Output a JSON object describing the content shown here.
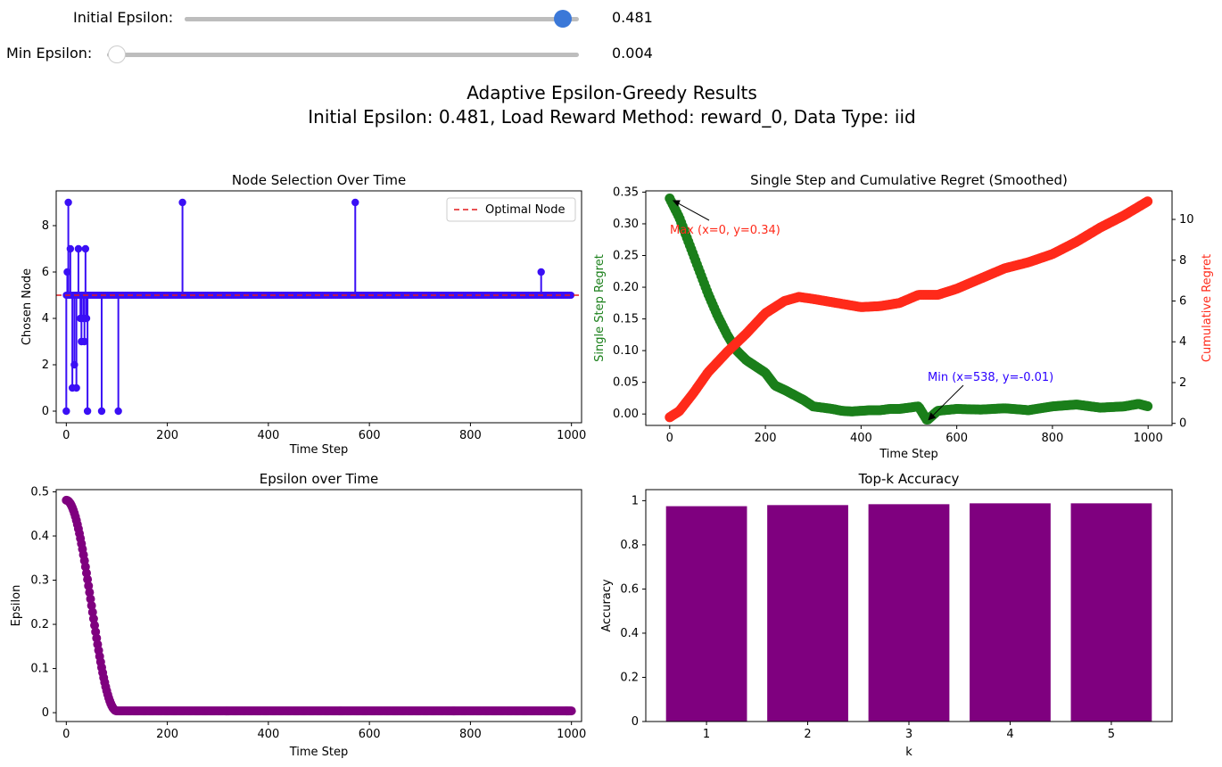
{
  "controls": {
    "initial_epsilon": {
      "label": "Initial Epsilon:",
      "value_text": "0.481",
      "fraction": 0.96
    },
    "min_epsilon": {
      "label": "Min Epsilon:",
      "value_text": "0.004",
      "fraction": 0.02
    }
  },
  "figure": {
    "suptitle_line1": "Adaptive Epsilon-Greedy Results",
    "suptitle_line2": "Initial Epsilon: 0.481, Load Reward Method: reward_0, Data Type: iid"
  },
  "colors": {
    "node_line": "#3a0ff5",
    "optimal_line": "#e41a1c",
    "single_regret": "#1a7f1a",
    "cumulative_regret": "#ff2a1a",
    "purple": "#7f007f",
    "min_annot": "#2a00ff",
    "slider_thumb_active": "#3b78d8"
  },
  "chart_data": [
    {
      "type": "stem",
      "title": "Node Selection Over Time",
      "xlabel": "Time Step",
      "ylabel": "Chosen Node",
      "xlim": [
        -20,
        1020
      ],
      "ylim": [
        -0.5,
        9.5
      ],
      "xticks": [
        0,
        200,
        400,
        600,
        800,
        1000
      ],
      "yticks": [
        0,
        2,
        4,
        6,
        8
      ],
      "baseline": 5,
      "baseline_range": [
        0,
        999
      ],
      "legend": {
        "position": "top-right",
        "label": "Optimal Node"
      },
      "optimal_node": 5,
      "points": [
        [
          0,
          0
        ],
        [
          2,
          6
        ],
        [
          4,
          9
        ],
        [
          8,
          7
        ],
        [
          12,
          1
        ],
        [
          16,
          2
        ],
        [
          20,
          1
        ],
        [
          24,
          7
        ],
        [
          28,
          4
        ],
        [
          30,
          3
        ],
        [
          34,
          4
        ],
        [
          36,
          3
        ],
        [
          38,
          7
        ],
        [
          40,
          4
        ],
        [
          42,
          0
        ],
        [
          70,
          0
        ],
        [
          103,
          0
        ],
        [
          230,
          9
        ],
        [
          572,
          9
        ],
        [
          940,
          6
        ]
      ]
    },
    {
      "type": "scatter-dual-axis",
      "title": "Single Step and Cumulative Regret (Smoothed)",
      "xlabel": "Time Step",
      "ylabel_left": "Single Step Regret",
      "ylabel_right": "Cumulative Regret",
      "xlim": [
        -50,
        1050
      ],
      "ylim_left": [
        -0.018,
        0.352
      ],
      "ylim_right": [
        -0.1,
        11.4
      ],
      "xticks": [
        0,
        200,
        400,
        600,
        800,
        1000
      ],
      "yticks_left": [
        0.0,
        0.05,
        0.1,
        0.15,
        0.2,
        0.25,
        0.3,
        0.35
      ],
      "yticks_left_labels": [
        "0.00",
        "0.05",
        "0.10",
        "0.15",
        "0.20",
        "0.25",
        "0.30",
        "0.35"
      ],
      "yticks_right": [
        0,
        2,
        4,
        6,
        8,
        10
      ],
      "single_step": {
        "name": "Single Step Regret",
        "x": [
          0,
          20,
          40,
          60,
          80,
          100,
          120,
          140,
          160,
          180,
          200,
          220,
          240,
          260,
          280,
          300,
          320,
          340,
          360,
          380,
          400,
          420,
          440,
          460,
          480,
          500,
          520,
          538,
          560,
          600,
          650,
          700,
          750,
          800,
          850,
          900,
          950,
          980,
          1000
        ],
        "y": [
          0.34,
          0.31,
          0.27,
          0.23,
          0.19,
          0.155,
          0.125,
          0.1,
          0.085,
          0.075,
          0.065,
          0.045,
          0.038,
          0.03,
          0.022,
          0.012,
          0.01,
          0.008,
          0.005,
          0.004,
          0.005,
          0.006,
          0.006,
          0.008,
          0.008,
          0.01,
          0.012,
          -0.01,
          0.005,
          0.008,
          0.007,
          0.009,
          0.006,
          0.012,
          0.015,
          0.01,
          0.012,
          0.016,
          0.012
        ]
      },
      "cumulative": {
        "name": "Cumulative Regret",
        "x": [
          0,
          20,
          50,
          80,
          120,
          160,
          200,
          240,
          270,
          300,
          350,
          400,
          440,
          480,
          520,
          560,
          600,
          650,
          700,
          750,
          800,
          850,
          900,
          950,
          1000
        ],
        "y": [
          0.3,
          0.6,
          1.5,
          2.5,
          3.5,
          4.4,
          5.4,
          6.0,
          6.2,
          6.1,
          5.9,
          5.7,
          5.75,
          5.9,
          6.3,
          6.3,
          6.6,
          7.1,
          7.6,
          7.9,
          8.3,
          8.9,
          9.6,
          10.2,
          10.9
        ]
      },
      "annotations": [
        {
          "text": "Max (x=0, y=0.34)",
          "x": 0,
          "y": 0.34
        },
        {
          "text": "Min (x=538, y=-0.01)",
          "x": 538,
          "y": -0.01
        }
      ]
    },
    {
      "type": "scatter",
      "title": "Epsilon over Time",
      "xlabel": "Time Step",
      "ylabel": "Epsilon",
      "xlim": [
        -20,
        1020
      ],
      "ylim": [
        -0.02,
        0.505
      ],
      "xticks": [
        0,
        200,
        400,
        600,
        800,
        1000
      ],
      "yticks": [
        0.0,
        0.1,
        0.2,
        0.3,
        0.4,
        0.5
      ],
      "initial": 0.481,
      "min": 0.004,
      "decay_end": 100
    },
    {
      "type": "bar",
      "title": "Top-k Accuracy",
      "xlabel": "k",
      "ylabel": "Accuracy",
      "categories": [
        "1",
        "2",
        "3",
        "4",
        "5"
      ],
      "values": [
        0.975,
        0.98,
        0.984,
        0.988,
        0.988
      ],
      "ylim": [
        0,
        1.05
      ],
      "yticks": [
        0.0,
        0.2,
        0.4,
        0.6,
        0.8,
        1.0
      ]
    }
  ]
}
